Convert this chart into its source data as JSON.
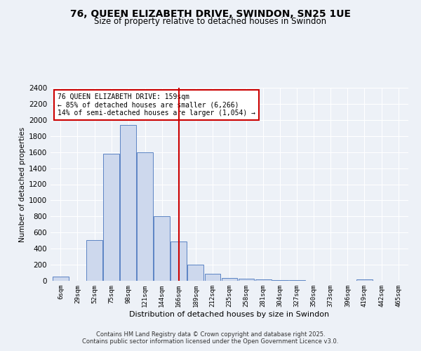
{
  "title": "76, QUEEN ELIZABETH DRIVE, SWINDON, SN25 1UE",
  "subtitle": "Size of property relative to detached houses in Swindon",
  "xlabel": "Distribution of detached houses by size in Swindon",
  "ylabel": "Number of detached properties",
  "bin_labels": [
    "6sqm",
    "29sqm",
    "52sqm",
    "75sqm",
    "98sqm",
    "121sqm",
    "144sqm",
    "166sqm",
    "189sqm",
    "212sqm",
    "235sqm",
    "258sqm",
    "281sqm",
    "304sqm",
    "327sqm",
    "350sqm",
    "373sqm",
    "396sqm",
    "419sqm",
    "442sqm",
    "465sqm"
  ],
  "bin_values": [
    50,
    0,
    510,
    1580,
    1940,
    1600,
    800,
    490,
    200,
    90,
    38,
    25,
    18,
    8,
    5,
    3,
    0,
    0,
    20,
    0,
    0
  ],
  "bar_color": "#cdd8ed",
  "bar_edge_color": "#5b84c4",
  "vline_x_index": 7,
  "vline_color": "#cc0000",
  "ylim": [
    0,
    2400
  ],
  "yticks": [
    0,
    200,
    400,
    600,
    800,
    1000,
    1200,
    1400,
    1600,
    1800,
    2000,
    2200,
    2400
  ],
  "annotation_title": "76 QUEEN ELIZABETH DRIVE: 159sqm",
  "annotation_line1": "← 85% of detached houses are smaller (6,266)",
  "annotation_line2": "14% of semi-detached houses are larger (1,054) →",
  "annotation_box_color": "#ffffff",
  "annotation_box_edge": "#cc0000",
  "footer1": "Contains HM Land Registry data © Crown copyright and database right 2025.",
  "footer2": "Contains public sector information licensed under the Open Government Licence v3.0.",
  "background_color": "#edf1f7",
  "grid_color": "#ffffff",
  "title_fontsize": 10,
  "subtitle_fontsize": 8.5
}
